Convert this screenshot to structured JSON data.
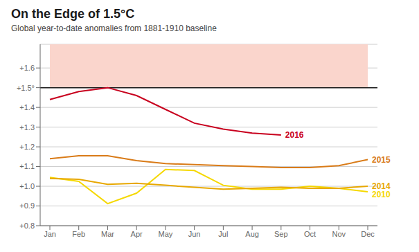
{
  "chart_data": {
    "type": "line",
    "title": "On the Edge of 1.5°C",
    "subtitle": "Global year-to-date anomalies from 1881-1910 baseline",
    "categories": [
      "Jan",
      "Feb",
      "Mar",
      "Apr",
      "May",
      "Jun",
      "Jul",
      "Aug",
      "Sep",
      "Oct",
      "Nov",
      "Dec"
    ],
    "series": [
      {
        "name": "2010",
        "color": "#f5d800",
        "values": [
          1.045,
          1.025,
          0.912,
          0.965,
          1.085,
          1.08,
          1.005,
          0.985,
          0.985,
          1.0,
          0.99,
          0.972
        ]
      },
      {
        "name": "2014",
        "color": "#e8a800",
        "values": [
          1.04,
          1.035,
          1.01,
          1.015,
          1.005,
          0.995,
          0.985,
          0.99,
          0.995,
          0.99,
          0.99,
          1.0
        ]
      },
      {
        "name": "2015",
        "color": "#d97b18",
        "values": [
          1.14,
          1.155,
          1.155,
          1.13,
          1.115,
          1.11,
          1.105,
          1.1,
          1.095,
          1.095,
          1.105,
          1.135
        ]
      },
      {
        "name": "2016",
        "color": "#c8001e",
        "values": [
          1.44,
          1.48,
          1.5,
          1.46,
          1.39,
          1.32,
          1.29,
          1.27,
          1.26,
          null,
          null,
          null
        ]
      }
    ],
    "ylim": [
      0.8,
      1.72
    ],
    "yticks": [
      {
        "value": 0.8,
        "label": "+0.8"
      },
      {
        "value": 0.9,
        "label": "+0.9"
      },
      {
        "value": 1.0,
        "label": "+1.0"
      },
      {
        "value": 1.1,
        "label": "+1.1"
      },
      {
        "value": 1.2,
        "label": "+1.2"
      },
      {
        "value": 1.3,
        "label": "+1.3"
      },
      {
        "value": 1.4,
        "label": "+1.4"
      },
      {
        "value": 1.5,
        "label": "+1.5°"
      },
      {
        "value": 1.6,
        "label": "+1.6"
      }
    ],
    "threshold": {
      "value": 1.5,
      "color": "#1a1a1a"
    },
    "shaded_band": {
      "from": 1.5,
      "to": 1.72,
      "color": "#fad5cc"
    },
    "grid": true
  }
}
